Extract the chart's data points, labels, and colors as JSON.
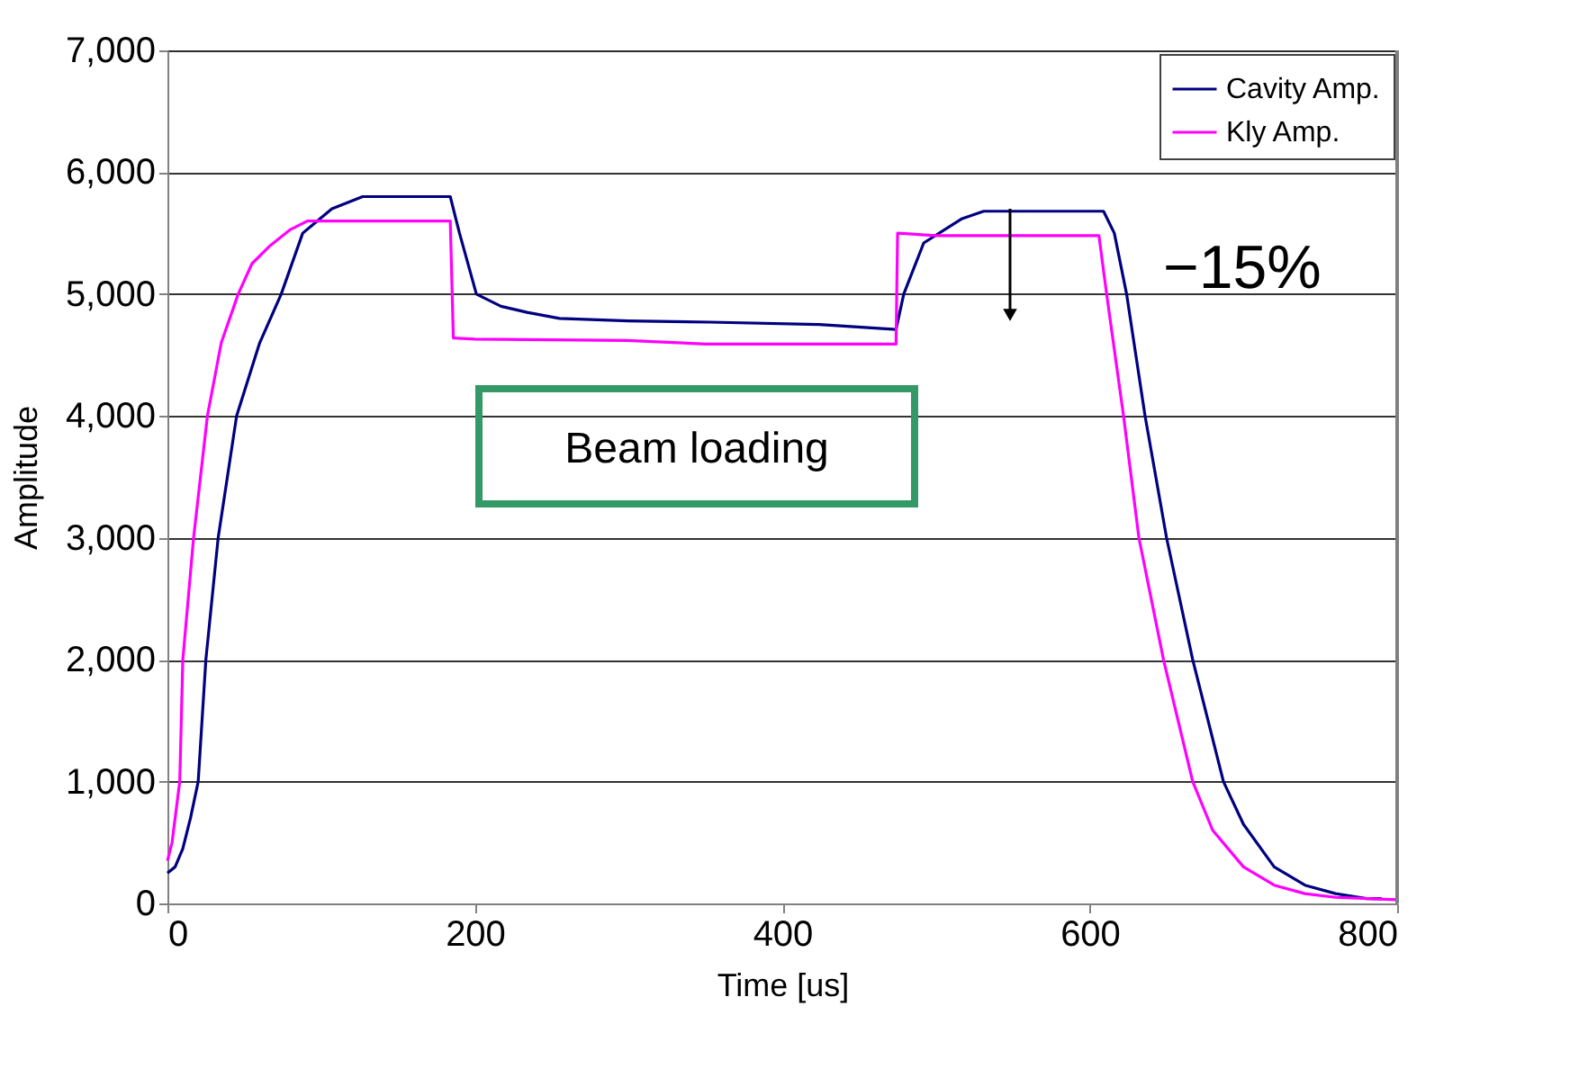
{
  "chart_data": {
    "type": "line",
    "xlabel": "Time [us]",
    "ylabel": "Amplitude",
    "xlim": [
      0,
      800
    ],
    "xticks": [
      0,
      200,
      400,
      600,
      800
    ],
    "ylim": [
      0,
      7000
    ],
    "yticks": [
      0,
      {
        "value": 1000,
        "label": "1,000"
      },
      {
        "value": 2000,
        "label": "2,000"
      },
      {
        "value": 3000,
        "label": "3,000"
      },
      {
        "value": 4000,
        "label": "4,000"
      },
      {
        "value": 5000,
        "label": "5,000"
      },
      {
        "value": 6000,
        "label": "6,000"
      },
      {
        "value": 7000,
        "label": "7,000"
      }
    ],
    "grid": "y",
    "legend": "top right",
    "marker": "none",
    "line_style": "solid",
    "series": [
      {
        "name": "Cavity Amp.",
        "color": "#000080",
        "x": [
          0,
          5,
          10,
          15,
          20,
          25,
          33,
          45,
          60,
          74,
          88,
          107,
          127,
          184,
          190,
          201,
          217,
          234,
          255,
          300,
          353,
          424,
          474,
          479,
          492,
          517,
          531,
          609,
          616,
          624,
          636,
          650,
          667,
          687,
          700,
          720,
          740,
          760,
          780,
          790
        ],
        "values": [
          250,
          300,
          450,
          700,
          1000,
          2000,
          3000,
          4000,
          4600,
          5000,
          5500,
          5700,
          5800,
          5800,
          5500,
          5000,
          4900,
          4850,
          4800,
          4780,
          4770,
          4750,
          4710,
          5000,
          5420,
          5620,
          5680,
          5680,
          5500,
          5000,
          4000,
          3000,
          2000,
          1000,
          650,
          300,
          150,
          80,
          40,
          40
        ]
      },
      {
        "name": "Kly Amp.",
        "color": "#ff00ff",
        "x": [
          0,
          3,
          8,
          10,
          17,
          26,
          35,
          46,
          55,
          67,
          80,
          91,
          184,
          186,
          200,
          299,
          350,
          474,
          475,
          500,
          606,
          611,
          622,
          632,
          648,
          667,
          680,
          700,
          720,
          740,
          760,
          800
        ],
        "values": [
          350,
          500,
          1000,
          2000,
          3000,
          4000,
          4600,
          5000,
          5250,
          5400,
          5530,
          5600,
          5600,
          4640,
          4630,
          4620,
          4590,
          4590,
          5500,
          5480,
          5480,
          5000,
          4000,
          3000,
          2000,
          1000,
          600,
          300,
          150,
          80,
          50,
          30
        ]
      }
    ],
    "annotations": [
      "−15%",
      "Beam loading"
    ]
  }
}
